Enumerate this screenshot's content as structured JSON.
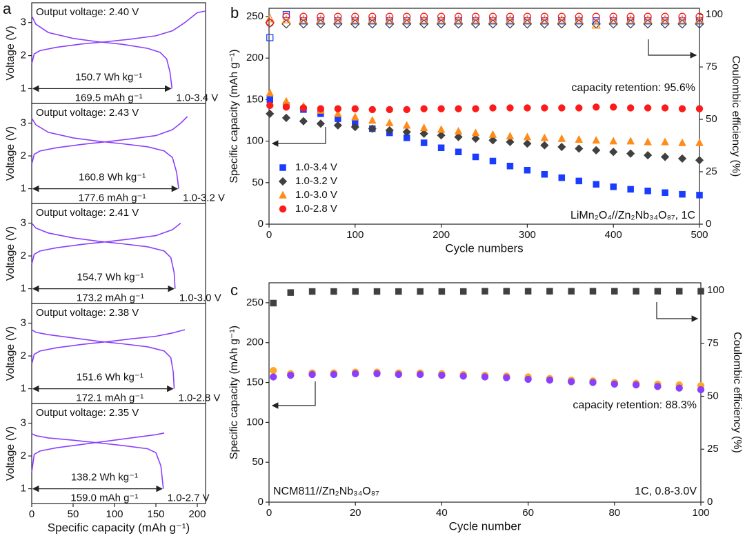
{
  "chart_data": [
    {
      "type": "line",
      "panel_label": "a",
      "title": "Output voltage: 2.40 V",
      "ylabel": "Voltage (V)",
      "annotations": [
        "150.7 Wh kg⁻¹",
        "169.5 mAh g⁻¹",
        "1.0-3.4 V"
      ],
      "xlim": [
        0,
        210
      ],
      "ylim": [
        0.55,
        3.6
      ],
      "yticks": [
        1,
        2,
        3
      ],
      "series": [
        {
          "color": "#8a3ffc",
          "x": [
            0,
            3,
            10,
            30,
            60,
            90,
            120,
            150,
            170,
            185,
            200,
            210
          ],
          "values": [
            1.75,
            2.05,
            2.15,
            2.25,
            2.35,
            2.42,
            2.5,
            2.6,
            2.75,
            3.0,
            3.3,
            3.35
          ]
        },
        {
          "color": "#8a3ffc",
          "x": [
            0,
            5,
            20,
            50,
            80,
            110,
            140,
            155,
            163,
            167,
            169.5
          ],
          "values": [
            3.2,
            2.95,
            2.7,
            2.52,
            2.42,
            2.34,
            2.22,
            2.1,
            1.9,
            1.5,
            1.0
          ]
        }
      ]
    },
    {
      "type": "line",
      "title": "Output voltage: 2.43 V",
      "ylabel": "Voltage (V)",
      "annotations": [
        "160.8 Wh kg⁻¹",
        "177.6 mAh g⁻¹",
        "1.0-3.2 V"
      ],
      "xlim": [
        0,
        210
      ],
      "ylim": [
        0.55,
        3.6
      ],
      "yticks": [
        1,
        2,
        3
      ],
      "series": [
        {
          "color": "#8a3ffc",
          "x": [
            0,
            3,
            10,
            30,
            60,
            90,
            120,
            150,
            170,
            180,
            188
          ],
          "values": [
            1.75,
            2.05,
            2.15,
            2.25,
            2.35,
            2.43,
            2.52,
            2.62,
            2.8,
            3.0,
            3.2
          ]
        },
        {
          "color": "#8a3ffc",
          "x": [
            0,
            5,
            20,
            50,
            80,
            110,
            140,
            160,
            170,
            175,
            177.6
          ],
          "values": [
            3.15,
            2.95,
            2.72,
            2.55,
            2.45,
            2.37,
            2.28,
            2.15,
            1.95,
            1.5,
            1.0
          ]
        }
      ]
    },
    {
      "type": "line",
      "title": "Output voltage: 2.41 V",
      "ylabel": "Voltage (V)",
      "annotations": [
        "154.7 Wh kg⁻¹",
        "173.2 mAh g⁻¹",
        "1.0-3.0 V"
      ],
      "xlim": [
        0,
        210
      ],
      "ylim": [
        0.55,
        3.6
      ],
      "yticks": [
        1,
        2,
        3
      ],
      "series": [
        {
          "color": "#8a3ffc",
          "x": [
            0,
            3,
            10,
            30,
            60,
            90,
            120,
            150,
            170,
            180
          ],
          "values": [
            1.75,
            2.05,
            2.15,
            2.25,
            2.35,
            2.43,
            2.52,
            2.62,
            2.8,
            3.0
          ]
        },
        {
          "color": "#8a3ffc",
          "x": [
            0,
            5,
            20,
            50,
            80,
            110,
            140,
            160,
            168,
            172,
            173.2
          ],
          "values": [
            3.0,
            2.85,
            2.7,
            2.55,
            2.45,
            2.37,
            2.28,
            2.15,
            1.95,
            1.5,
            1.0
          ]
        }
      ]
    },
    {
      "type": "line",
      "title": "Output voltage: 2.38 V",
      "ylabel": "Voltage (V)",
      "annotations": [
        "151.6 Wh kg⁻¹",
        "172.1 mAh g⁻¹",
        "1.0-2.8 V"
      ],
      "xlim": [
        0,
        210
      ],
      "ylim": [
        0.55,
        3.6
      ],
      "yticks": [
        1,
        2,
        3
      ],
      "series": [
        {
          "color": "#8a3ffc",
          "x": [
            0,
            3,
            10,
            30,
            60,
            90,
            120,
            150,
            170,
            185
          ],
          "values": [
            1.75,
            2.05,
            2.15,
            2.25,
            2.35,
            2.43,
            2.52,
            2.6,
            2.7,
            2.8
          ]
        },
        {
          "color": "#8a3ffc",
          "x": [
            0,
            5,
            20,
            50,
            80,
            110,
            140,
            160,
            168,
            171,
            172.1
          ],
          "values": [
            2.8,
            2.72,
            2.65,
            2.55,
            2.45,
            2.37,
            2.28,
            2.15,
            1.95,
            1.5,
            1.0
          ]
        }
      ]
    },
    {
      "type": "line",
      "title": "Output voltage: 2.35 V",
      "ylabel": "Voltage (V)",
      "xlabel": "Specific capacity (mAh g⁻¹)",
      "annotations": [
        "138.2 Wh kg⁻¹",
        "159.0 mAh g⁻¹",
        "1.0-2.7 V"
      ],
      "xlim": [
        0,
        210
      ],
      "xticks": [
        0,
        50,
        100,
        150,
        200
      ],
      "ylim": [
        0.55,
        3.6
      ],
      "yticks": [
        1,
        2,
        3
      ],
      "series": [
        {
          "color": "#8a3ffc",
          "x": [
            0,
            3,
            10,
            30,
            60,
            90,
            120,
            150,
            160
          ],
          "values": [
            1.5,
            2.05,
            2.15,
            2.25,
            2.35,
            2.45,
            2.55,
            2.65,
            2.7
          ]
        },
        {
          "color": "#8a3ffc",
          "x": [
            0,
            5,
            20,
            50,
            80,
            110,
            140,
            150,
            156,
            159
          ],
          "values": [
            2.68,
            2.62,
            2.55,
            2.48,
            2.4,
            2.32,
            2.22,
            2.1,
            1.7,
            1.0
          ]
        }
      ]
    },
    {
      "type": "scatter",
      "panel_label": "b",
      "xlabel": "Cycle numbers",
      "ylabel": "Specific capacity (mAh g⁻¹)",
      "y2label": "Coulombic efficiency (%)",
      "annotations": [
        "capacity retention: 95.6%",
        "LiMn₂O₄//Zn₂Nb₃₄O₈₇, 1C"
      ],
      "legend": "lower left",
      "xlim": [
        0,
        500
      ],
      "xticks": [
        0,
        100,
        200,
        300,
        400,
        500
      ],
      "ylim": [
        0,
        260
      ],
      "yticks": [
        0,
        50,
        100,
        150,
        200,
        250
      ],
      "y2lim": [
        0,
        103
      ],
      "y2ticks": [
        0,
        25,
        50,
        75,
        100
      ],
      "x": [
        1,
        20,
        40,
        60,
        80,
        100,
        120,
        140,
        160,
        180,
        200,
        220,
        240,
        260,
        280,
        300,
        320,
        340,
        360,
        380,
        400,
        420,
        440,
        460,
        480,
        500
      ],
      "series": [
        {
          "name": "1.0-3.4 V",
          "color": "#1a3cff",
          "marker": "square",
          "filled": true,
          "values": [
            150,
            143,
            138,
            133,
            127,
            121,
            115,
            110,
            104,
            98,
            92,
            87,
            81,
            76,
            70,
            65,
            60,
            56,
            52,
            48,
            45,
            42,
            40,
            38,
            36,
            35
          ]
        },
        {
          "name": "1.0-3.2 V",
          "color": "#404040",
          "marker": "diamond",
          "filled": true,
          "values": [
            133,
            128,
            124,
            121,
            119,
            117,
            115,
            113,
            111,
            109,
            107,
            105,
            103,
            101,
            99,
            97,
            95,
            93,
            91,
            89,
            87,
            85,
            83,
            81,
            79,
            77
          ]
        },
        {
          "name": "1.0-3.0 V",
          "color": "#ff8c1a",
          "marker": "triangle",
          "filled": true,
          "values": [
            158,
            148,
            142,
            137,
            133,
            129,
            125,
            122,
            119,
            116,
            114,
            112,
            110,
            108,
            106,
            105,
            104,
            103,
            102,
            101,
            100,
            100,
            99,
            99,
            98,
            98
          ]
        },
        {
          "name": "1.0-2.8 V",
          "color": "#ff1a1a",
          "marker": "circle",
          "filled": true,
          "values": [
            143,
            141,
            140,
            139,
            139,
            139,
            138,
            138,
            138,
            139,
            139,
            139,
            139,
            140,
            140,
            140,
            140,
            140,
            140,
            141,
            141,
            140,
            140,
            140,
            139,
            139
          ]
        },
        {
          "color": "#1a3cff",
          "marker": "square",
          "filled": false,
          "axis": "y2",
          "values": [
            89,
            100,
            97,
            97,
            97,
            97,
            97,
            97,
            97,
            97,
            97,
            97,
            97,
            97,
            97,
            97,
            97,
            97,
            97,
            97,
            97,
            97,
            97,
            97,
            97,
            97
          ]
        },
        {
          "color": "#404040",
          "marker": "diamond",
          "filled": false,
          "axis": "y2",
          "values": [
            96,
            95.5,
            95.5,
            95.5,
            95.5,
            95.5,
            95.5,
            95.5,
            95.5,
            95.5,
            95.5,
            95.5,
            95.5,
            95.5,
            95.5,
            95.5,
            95.5,
            95.5,
            95.5,
            95.5,
            95.5,
            95.5,
            95.5,
            95.5,
            95.5,
            95.5
          ]
        },
        {
          "color": "#ff8c1a",
          "marker": "triangle",
          "filled": false,
          "axis": "y2",
          "values": [
            98,
            97.5,
            97.5,
            97.5,
            97.5,
            97.5,
            97.5,
            97.5,
            97.5,
            97.5,
            97.5,
            97.5,
            97.5,
            97.5,
            97.5,
            97.5,
            97.5,
            97.5,
            97.5,
            95,
            97.5,
            97.5,
            97.5,
            97.5,
            97.5,
            97.5
          ]
        },
        {
          "color": "#ff1a1a",
          "marker": "circle",
          "filled": false,
          "axis": "y2",
          "values": [
            96,
            99,
            99,
            99,
            99,
            99,
            99,
            99,
            99,
            99,
            99,
            99,
            99,
            99,
            99,
            99,
            99,
            99,
            99,
            99,
            99,
            99,
            99,
            99,
            99,
            99
          ]
        }
      ]
    },
    {
      "type": "scatter",
      "panel_label": "c",
      "xlabel": "Cycle number",
      "ylabel": "Specific capacity (mAh g⁻¹)",
      "y2label": "Coulombic efficiency (%)",
      "annotations": [
        "capacity retention: 88.3%",
        "NCM811//Zn₂Nb₃₄O₈₇",
        "1C, 0.8-3.0V"
      ],
      "xlim": [
        0,
        100
      ],
      "xticks": [
        0,
        20,
        40,
        60,
        80,
        100
      ],
      "ylim": [
        0,
        275
      ],
      "yticks": [
        0,
        50,
        100,
        150,
        200,
        250
      ],
      "y2lim": [
        0,
        103.6
      ],
      "y2ticks": [
        0,
        25,
        50,
        75,
        100
      ],
      "x": [
        1,
        5,
        10,
        15,
        20,
        25,
        30,
        35,
        40,
        45,
        50,
        55,
        60,
        65,
        70,
        75,
        80,
        85,
        90,
        95,
        100
      ],
      "series": [
        {
          "color": "#ffa726",
          "marker": "circle",
          "filled": true,
          "values": [
            165,
            161,
            162,
            162,
            163,
            163,
            162,
            162,
            161,
            160,
            159,
            158,
            157,
            155,
            153,
            152,
            150,
            149,
            148,
            147,
            146
          ]
        },
        {
          "color": "#8a3ffc",
          "marker": "circle",
          "filled": true,
          "values": [
            157,
            159,
            160,
            160,
            161,
            161,
            160,
            160,
            159,
            158,
            157,
            156,
            154,
            153,
            151,
            150,
            148,
            147,
            145,
            143,
            141
          ]
        },
        {
          "color": "#404040",
          "marker": "square",
          "filled": true,
          "axis": "y2",
          "values": [
            94,
            99,
            99.5,
            99.5,
            99.5,
            99.5,
            99.5,
            99.5,
            99.5,
            99.5,
            99.6,
            99.6,
            99.6,
            99.6,
            99.6,
            99.6,
            99.6,
            99.6,
            99.6,
            99.6,
            99.6
          ]
        }
      ]
    }
  ]
}
